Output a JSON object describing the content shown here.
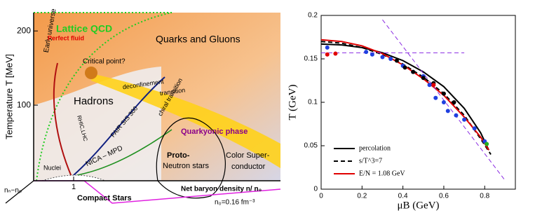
{
  "chart_data": [
    {
      "type": "phase",
      "ylabel": "Temperature T [MeV]",
      "ylim": [
        0,
        220
      ],
      "yticks": [
        100,
        200
      ],
      "xticks": [
        1
      ],
      "annotations": [
        "Lattice  QCD",
        "Early universe",
        "Perfect fluid",
        "Critical point?",
        "Quarks and Gluons",
        "Hadrons",
        "deconfinement",
        "transition",
        "RHIC,LHC",
        "FAIR SIS 300",
        "chiral transition",
        "Quarkyonic phase",
        "NICA – MPD",
        "Proto-",
        "Neutron stars",
        "Color Super-",
        "conductor",
        "Nuclei",
        "Compact Stars",
        "Net baryon density n/  n₀",
        "n₀=0.16 fm⁻³",
        "nₙ−nₚ"
      ]
    },
    {
      "type": "line",
      "xlabel": "μB (GeV)",
      "ylabel": "T (GeV)",
      "xlim": [
        0,
        0.95
      ],
      "ylim": [
        0,
        0.2
      ],
      "xticks": [
        0,
        0.2,
        0.4,
        0.6,
        0.8
      ],
      "yticks": [
        0,
        0.05,
        0.1,
        0.15,
        0.2
      ],
      "series": [
        {
          "name": "percolation",
          "color": "#000000",
          "dash": "solid",
          "x": [
            0,
            0.1,
            0.2,
            0.3,
            0.4,
            0.5,
            0.6,
            0.7,
            0.78,
            0.82
          ],
          "values": [
            0.167,
            0.166,
            0.163,
            0.157,
            0.148,
            0.135,
            0.118,
            0.093,
            0.065,
            0.045
          ]
        },
        {
          "name": "s/T^3=7",
          "color": "#000000",
          "dash": "dashed",
          "x": [
            0,
            0.1,
            0.2,
            0.3,
            0.4,
            0.5,
            0.6,
            0.7,
            0.78,
            0.83
          ],
          "values": [
            0.17,
            0.168,
            0.163,
            0.155,
            0.144,
            0.129,
            0.11,
            0.085,
            0.058,
            0.04
          ]
        },
        {
          "name": "E/N = 1.08 GeV",
          "color": "#e00000",
          "dash": "solid",
          "x": [
            0,
            0.1,
            0.2,
            0.3,
            0.4,
            0.5,
            0.6,
            0.7,
            0.78,
            0.82
          ],
          "values": [
            0.172,
            0.17,
            0.165,
            0.156,
            0.143,
            0.127,
            0.108,
            0.083,
            0.06,
            0.045
          ]
        },
        {
          "color": "#8a2be2",
          "dash": "dashed",
          "x": [
            0,
            0.7
          ],
          "values": [
            0.157,
            0.157
          ]
        },
        {
          "color": "#8a2be2",
          "dash": "dashed",
          "x": [
            0.3,
            0.9
          ],
          "values": [
            0.195,
            0.01
          ]
        }
      ],
      "points": [
        {
          "color": "#2040e0",
          "x": [
            0.03,
            0.22,
            0.25,
            0.3,
            0.34,
            0.4,
            0.45,
            0.5,
            0.53,
            0.56,
            0.6,
            0.62,
            0.66,
            0.7,
            0.75,
            0.8
          ],
          "values": [
            0.163,
            0.158,
            0.155,
            0.152,
            0.15,
            0.142,
            0.135,
            0.13,
            0.12,
            0.105,
            0.1,
            0.09,
            0.085,
            0.08,
            0.07,
            0.055
          ]
        },
        {
          "color": "#000000",
          "x": [
            0.37,
            0.41,
            0.45,
            0.5,
            0.55,
            0.6,
            0.65
          ],
          "values": [
            0.148,
            0.14,
            0.135,
            0.128,
            0.122,
            0.11,
            0.1
          ]
        },
        {
          "color": "#e00000",
          "x": [
            0.03,
            0.07,
            0.55
          ],
          "values": [
            0.155,
            0.156,
            0.12
          ]
        },
        {
          "color": "#20b020",
          "x": [
            0.81
          ],
          "values": [
            0.052
          ]
        }
      ]
    }
  ]
}
